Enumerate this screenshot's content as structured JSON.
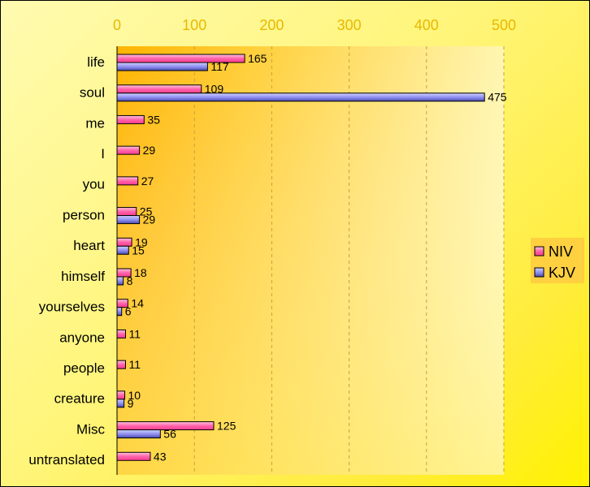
{
  "chart_data": {
    "type": "bar",
    "orientation": "horizontal",
    "categories": [
      "life",
      "soul",
      "me",
      "I",
      "you",
      "person",
      "heart",
      "himself",
      "yourselves",
      "anyone",
      "people",
      "creature",
      "Misc",
      "untranslated"
    ],
    "series": [
      {
        "name": "NIV",
        "color": "#ff5ea8",
        "values": [
          165,
          109,
          35,
          29,
          27,
          25,
          19,
          18,
          14,
          11,
          11,
          10,
          125,
          43
        ]
      },
      {
        "name": "KJV",
        "color": "#8c8cf0",
        "values": [
          117,
          475,
          null,
          null,
          null,
          29,
          15,
          8,
          6,
          null,
          null,
          9,
          56,
          null
        ]
      }
    ],
    "xlim": [
      0,
      500
    ],
    "xticks": [
      0,
      100,
      200,
      300,
      400,
      500
    ],
    "grid": "vertical dashed",
    "legend": "right"
  }
}
